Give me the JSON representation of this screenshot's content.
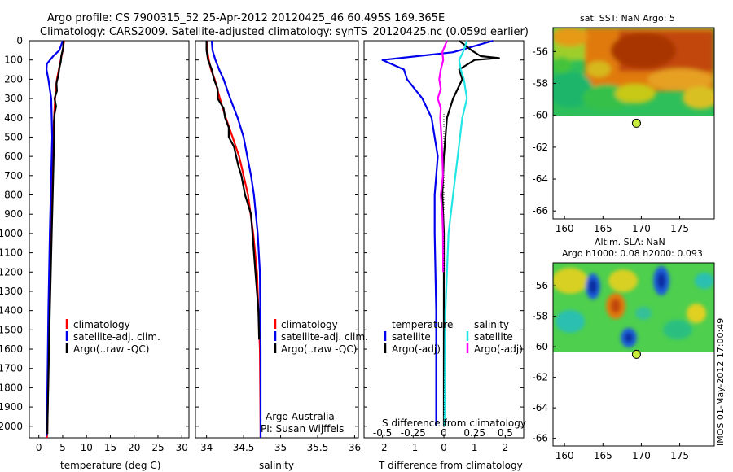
{
  "header": {
    "line1": "Argo profile: CS 7900315_52 25-Apr-2012 20120425_46 60.495S 169.365E",
    "line2": "Climatology: CARS2009. Satellite-adjusted climatology: synTS_20120425.nc (0.059d earlier)"
  },
  "side_label": "IMOS 01-May-2012 17:00:49",
  "colors": {
    "climatology": "#ff0000",
    "satellite": "#0000ee",
    "argo": "#000000",
    "sat_salinity": "#22e5e5",
    "argo_salinity": "#ff00ff",
    "marker": "#c8ee3a"
  },
  "chart_data": [
    {
      "type": "line",
      "panel": "temperature",
      "xlabel": "temperature (deg C)",
      "xlim": [
        -2,
        31.5
      ],
      "xticks": [
        0,
        5,
        10,
        15,
        20,
        25,
        30
      ],
      "ylim": [
        0,
        2060
      ],
      "yticks": [
        0,
        100,
        200,
        300,
        400,
        500,
        600,
        700,
        800,
        900,
        1000,
        1100,
        1200,
        1300,
        1400,
        1500,
        1600,
        1700,
        1800,
        1900,
        2000
      ],
      "legend": [
        "climatology",
        "satellite-adj. clim.",
        "Argo(..raw -QC)"
      ],
      "series": [
        {
          "name": "climatology",
          "color": "#ff0000",
          "y": [
            0,
            50,
            100,
            150,
            200,
            300,
            400,
            500,
            700,
            1000,
            1400,
            2000,
            2060
          ],
          "x": [
            5.3,
            5.0,
            4.6,
            4.2,
            3.8,
            3.4,
            3.2,
            3.0,
            2.8,
            2.5,
            2.2,
            1.8,
            1.7
          ]
        },
        {
          "name": "satellite-adj. clim.",
          "color": "#0000ee",
          "y": [
            0,
            50,
            80,
            120,
            150,
            200,
            300,
            500,
            700,
            1000,
            1400,
            2000,
            2050
          ],
          "x": [
            5.0,
            4.3,
            3.0,
            1.7,
            1.6,
            2.0,
            2.6,
            2.8,
            2.6,
            2.3,
            2.0,
            1.7,
            1.6
          ]
        },
        {
          "name": "Argo(..raw -QC)",
          "color": "#000000",
          "y": [
            0,
            40,
            80,
            110,
            140,
            180,
            220,
            260,
            300,
            340,
            380,
            420,
            500,
            700,
            1000,
            1400,
            2000,
            2040
          ],
          "x": [
            5.2,
            5.1,
            4.7,
            4.6,
            4.3,
            4.1,
            3.7,
            3.8,
            3.3,
            3.6,
            3.3,
            3.2,
            3.2,
            3.0,
            2.7,
            2.3,
            1.8,
            1.8
          ]
        }
      ]
    },
    {
      "type": "line",
      "panel": "salinity",
      "xlabel": "salinity",
      "xlim": [
        33.85,
        36.05
      ],
      "xticks": [
        34,
        34.5,
        35,
        35.5,
        36
      ],
      "ylim": [
        0,
        2060
      ],
      "legend": [
        "climatology",
        "satellite-adj. clim.",
        "Argo(..raw -QC)"
      ],
      "annotation": [
        "Argo Australia",
        "PI: Susan Wijffels"
      ],
      "series": [
        {
          "name": "climatology",
          "color": "#ff0000",
          "y": [
            0,
            50,
            100,
            150,
            200,
            300,
            400,
            500,
            600,
            700,
            800,
            1000,
            1200,
            1600,
            2060
          ],
          "x": [
            34.0,
            34.01,
            34.03,
            34.06,
            34.11,
            34.18,
            34.26,
            34.35,
            34.44,
            34.5,
            34.56,
            34.63,
            34.68,
            34.72,
            34.73
          ]
        },
        {
          "name": "satellite-adj. clim.",
          "color": "#0000ee",
          "y": [
            0,
            50,
            100,
            150,
            200,
            300,
            400,
            500,
            600,
            700,
            800,
            1000,
            1200,
            1600,
            2060
          ],
          "x": [
            34.07,
            34.08,
            34.12,
            34.17,
            34.23,
            34.32,
            34.42,
            34.5,
            34.55,
            34.6,
            34.64,
            34.69,
            34.72,
            34.73,
            34.73
          ]
        },
        {
          "name": "Argo(..raw -QC)",
          "color": "#000000",
          "y": [
            0,
            50,
            100,
            150,
            200,
            250,
            300,
            350,
            400,
            450,
            500,
            550,
            600,
            650,
            700,
            800,
            900,
            1000,
            1200,
            1400,
            1550
          ],
          "x": [
            34.0,
            34.0,
            34.02,
            34.07,
            34.1,
            34.15,
            34.15,
            34.23,
            34.25,
            34.3,
            34.3,
            34.37,
            34.4,
            34.43,
            34.47,
            34.52,
            34.6,
            34.62,
            34.66,
            34.7,
            34.71
          ]
        }
      ]
    },
    {
      "type": "line",
      "panel": "difference",
      "xlabel": "T difference from climatology",
      "xlabel_top": "S difference from climatology",
      "xlim": [
        -2.6,
        2.6
      ],
      "xticks": [
        -2,
        -1,
        0,
        1,
        2
      ],
      "xticks_top": [
        "-0.5",
        "-0.25",
        "0",
        "0.25",
        "0.5"
      ],
      "ylim": [
        0,
        2060
      ],
      "legend_left_title": "temperature",
      "legend_right_title": "salinity",
      "legend": [
        "satellite",
        "Argo(-adj)",
        "satellite",
        "Argo(-adj)"
      ],
      "series": [
        {
          "name": "satellite",
          "group": "temperature",
          "color": "#0000ee",
          "y": [
            0,
            60,
            100,
            150,
            200,
            300,
            400,
            600,
            800,
            1000,
            1400,
            2000
          ],
          "x": [
            1.6,
            0.3,
            -2.0,
            -1.3,
            -1.2,
            -0.7,
            -0.4,
            -0.2,
            -0.3,
            -0.3,
            -0.25,
            -0.25
          ]
        },
        {
          "name": "Argo(-adj)",
          "group": "temperature",
          "color": "#000000",
          "y": [
            0,
            50,
            80,
            90,
            100,
            150,
            200,
            300,
            400,
            600,
            800,
            1000,
            1400,
            2000
          ],
          "x": [
            0.5,
            0.9,
            1.2,
            1.8,
            1.0,
            0.5,
            0.6,
            0.3,
            0.1,
            0.0,
            -0.05,
            0.0,
            0.0,
            0.0
          ]
        },
        {
          "name": "satellite",
          "group": "salinity",
          "color": "#22e5e5",
          "y": [
            0,
            50,
            100,
            150,
            200,
            300,
            400,
            600,
            800,
            1000,
            1400,
            2000
          ],
          "x": [
            0.75,
            0.65,
            0.5,
            0.55,
            0.65,
            0.75,
            0.6,
            0.45,
            0.3,
            0.15,
            0.05,
            0.02
          ]
        },
        {
          "name": "Argo(-adj)",
          "group": "salinity",
          "color": "#ff00ff",
          "y": [
            0,
            60,
            100,
            150,
            200,
            250,
            300,
            350,
            400,
            500,
            600,
            700,
            800,
            900,
            1000,
            1200
          ],
          "x": [
            0.1,
            -0.05,
            -0.02,
            -0.1,
            -0.15,
            -0.1,
            -0.2,
            -0.1,
            -0.12,
            -0.08,
            -0.05,
            -0.03,
            -0.1,
            -0.05,
            -0.03,
            -0.02
          ]
        }
      ]
    },
    {
      "type": "heatmap",
      "panel": "sst_map",
      "title": "sat. SST: NaN Argo: 5",
      "xlim": [
        158.5,
        179.5
      ],
      "ylim": [
        -66.5,
        -54.5
      ],
      "xticks": [
        160,
        165,
        170,
        175
      ],
      "yticks": [
        -56,
        -58,
        -60,
        -62,
        -64,
        -66
      ],
      "marker": {
        "lon": 169.365,
        "lat": -60.495
      }
    },
    {
      "type": "heatmap",
      "panel": "sla_map",
      "title": "Altim. SLA: NaN",
      "subtitle": "Argo h1000: 0.08 h2000: 0.093",
      "xlim": [
        158.5,
        179.5
      ],
      "ylim": [
        -66.5,
        -54.5
      ],
      "xticks": [
        160,
        165,
        170,
        175
      ],
      "yticks": [
        -56,
        -58,
        -60,
        -62,
        -64,
        -66
      ],
      "marker": {
        "lon": 169.365,
        "lat": -60.495
      }
    }
  ]
}
